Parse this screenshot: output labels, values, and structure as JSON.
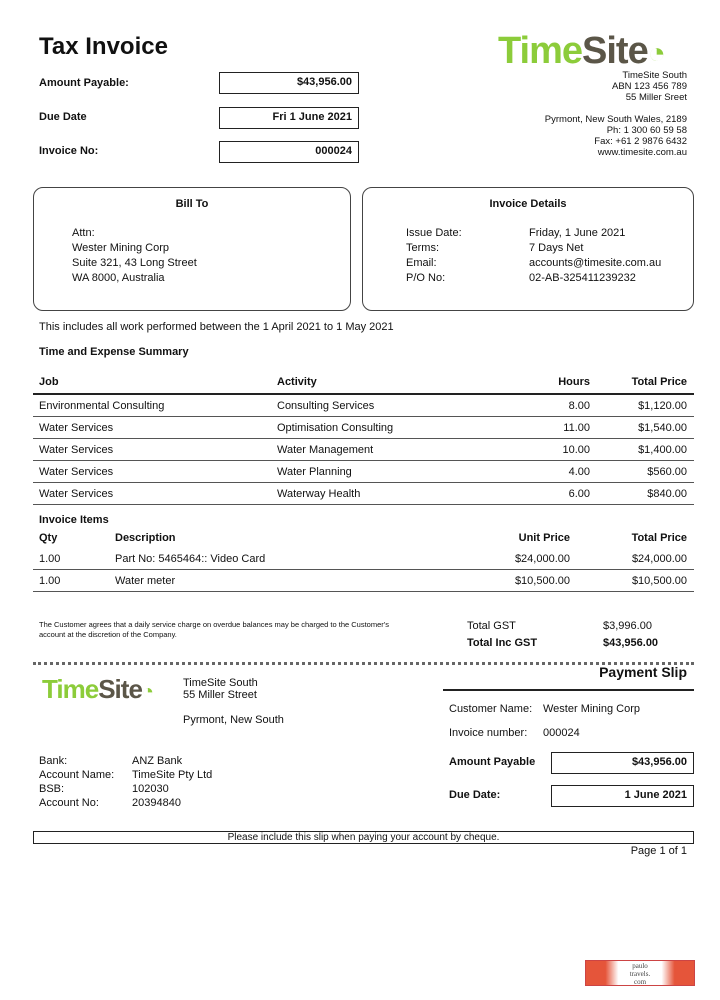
{
  "title": "Tax Invoice",
  "amount_payable": {
    "label": "Amount Payable:",
    "value": "$43,956.00"
  },
  "due_date": {
    "label": "Due Date",
    "value": "Fri 1 June 2021"
  },
  "invoice_no": {
    "label": "Invoice No:",
    "value": "000024"
  },
  "company": {
    "logo_a": "Time",
    "logo_b": "Site",
    "lines": [
      "TimeSite South",
      "ABN 123 456 789",
      "55 Miller Sreet",
      "",
      "Pyrmont, New South Wales, 2189",
      "Ph: 1 300 60 59 58",
      "Fax: +61 2 9876 6432",
      "www.timesite.com.au"
    ]
  },
  "bill_to": {
    "heading": "Bill To",
    "lines": [
      "Attn:",
      "Wester Mining Corp",
      "Suite 321, 43 Long Street",
      "WA 8000, Australia"
    ]
  },
  "invoice_details": {
    "heading": "Invoice Details",
    "rows": [
      {
        "k": "Issue Date:",
        "v": "Friday, 1 June 2021"
      },
      {
        "k": "Terms:",
        "v": "7 Days Net"
      },
      {
        "k": "Email:",
        "v": "accounts@timesite.com.au"
      },
      {
        "k": "P/O No:",
        "v": "02-AB-325411239232"
      }
    ]
  },
  "note": "This includes all work performed between the 1 April 2021 to 1 May 2021",
  "summary": {
    "heading": "Time and Expense Summary",
    "cols": [
      "Job",
      "Activity",
      "Hours",
      "Total Price"
    ],
    "rows": [
      [
        "Environmental Consulting",
        "Consulting Services",
        "8.00",
        "$1,120.00"
      ],
      [
        "Water Services",
        "Optimisation Consulting",
        "11.00",
        "$1,540.00"
      ],
      [
        "Water Services",
        "Water Management",
        "10.00",
        "$1,400.00"
      ],
      [
        "Water Services",
        "Water Planning",
        "4.00",
        "$560.00"
      ],
      [
        "Water Services",
        "Waterway Health",
        "6.00",
        "$840.00"
      ]
    ]
  },
  "items": {
    "heading": "Invoice Items",
    "cols": [
      "Qty",
      "Description",
      "Unit Price",
      "Total Price"
    ],
    "rows": [
      [
        "1.00",
        "Part No: 5465464:: Video Card",
        "$24,000.00",
        "$24,000.00"
      ],
      [
        "1.00",
        "Water meter",
        "$10,500.00",
        "$10,500.00"
      ]
    ]
  },
  "terms": "The Customer agrees that a daily service charge on overdue balances may be charged to the Customer's account at the discretion of the Company.",
  "totals": {
    "gst_label": "Total GST",
    "gst": "$3,996.00",
    "inc_label": "Total Inc GST",
    "inc": "$43,956.00"
  },
  "slip": {
    "title": "Payment Slip",
    "addr": [
      "TimeSite South",
      "55 Miller Street",
      "Pyrmont, New South"
    ],
    "customer_label": "Customer Name:",
    "customer": "Wester Mining Corp",
    "invnum_label": "Invoice number:",
    "invnum": "000024",
    "amount_label": "Amount Payable",
    "amount": "$43,956.00",
    "due_label": "Due Date:",
    "due": "1 June 2021",
    "bank": [
      {
        "k": "Bank:",
        "v": "ANZ Bank"
      },
      {
        "k": "Account Name:",
        "v": "TimeSite Pty Ltd"
      },
      {
        "k": "BSB:",
        "v": "102030"
      },
      {
        "k": "Account No:",
        "v": "20394840"
      }
    ],
    "footer": "Please include this slip when paying your account by cheque."
  },
  "page": "Page 1 of 1",
  "watermark": "paulo travels .com"
}
